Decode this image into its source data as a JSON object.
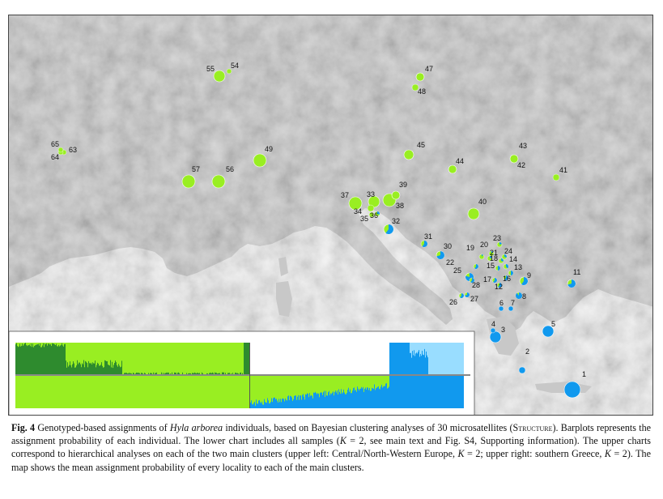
{
  "figure": {
    "caption": {
      "label": "Fig. 4",
      "text_1": "Genotyped-based assignments of",
      "species": "Hyla arborea",
      "text_2": "individuals, based on Bayesian clustering analyses of 30 microsatellites (",
      "software": "Structure",
      "text_3": "). Barplots represents the assignment probability of each individual. The lower chart includes all samples (",
      "k_all": "K",
      "text_4": "= 2, see main text and Fig. S4, Supporting information). The upper charts correspond to hierarchical analyses on each of the two main clusters (upper left: Central/North-Western Europe,",
      "k_cw": "K",
      "text_5": "= 2; upper right: southern Greece,",
      "k_gr": "K",
      "text_6": "= 2). The map shows the mean assignment probability of every locality to each of the main clusters."
    }
  },
  "chart_data": {
    "type": "map-pies-and-barplots",
    "colors": {
      "cluster_a": "#99ee22",
      "cluster_b": "#1199ee",
      "dark_green": "#2e8b2e",
      "light_blue": "#99ddff"
    },
    "localities": [
      {
        "id": "1",
        "blue": 1.0
      },
      {
        "id": "2",
        "blue": 1.0
      },
      {
        "id": "3",
        "blue": 1.0
      },
      {
        "id": "4",
        "blue": 1.0
      },
      {
        "id": "5",
        "blue": 1.0
      },
      {
        "id": "6",
        "blue": 1.0
      },
      {
        "id": "7",
        "blue": 1.0
      },
      {
        "id": "8",
        "blue": 0.9
      },
      {
        "id": "9",
        "blue": 0.6
      },
      {
        "id": "11",
        "blue": 0.7
      },
      {
        "id": "12",
        "blue": 0.6
      },
      {
        "id": "13",
        "blue": 0.5
      },
      {
        "id": "14",
        "blue": 0.4
      },
      {
        "id": "15",
        "blue": 0.5
      },
      {
        "id": "16",
        "blue": 0.6
      },
      {
        "id": "17",
        "blue": 0.6
      },
      {
        "id": "18",
        "blue": 0.3
      },
      {
        "id": "19",
        "blue": 0.1
      },
      {
        "id": "20",
        "blue": 0.1
      },
      {
        "id": "21",
        "blue": 0.2
      },
      {
        "id": "22",
        "blue": 0.6
      },
      {
        "id": "23",
        "blue": 0.2
      },
      {
        "id": "24",
        "blue": 0.3
      },
      {
        "id": "25",
        "blue": 0.8
      },
      {
        "id": "26",
        "blue": 0.6
      },
      {
        "id": "27",
        "blue": 0.7
      },
      {
        "id": "28",
        "blue": 0.6
      },
      {
        "id": "30",
        "blue": 0.7
      },
      {
        "id": "31",
        "blue": 0.6
      },
      {
        "id": "32",
        "blue": 0.6
      },
      {
        "id": "33",
        "blue": 0.0
      },
      {
        "id": "34",
        "blue": 0.0
      },
      {
        "id": "35",
        "blue": 0.0
      },
      {
        "id": "36",
        "blue": 0.3
      },
      {
        "id": "37",
        "blue": 0.0
      },
      {
        "id": "38",
        "blue": 0.0
      },
      {
        "id": "39",
        "blue": 0.0
      },
      {
        "id": "40",
        "blue": 0.0
      },
      {
        "id": "41",
        "blue": 0.0
      },
      {
        "id": "42",
        "blue": 0.0
      },
      {
        "id": "43",
        "blue": 0.0
      },
      {
        "id": "44",
        "blue": 0.0
      },
      {
        "id": "45",
        "blue": 0.0
      },
      {
        "id": "47",
        "blue": 0.0
      },
      {
        "id": "48",
        "blue": 0.0
      },
      {
        "id": "49",
        "blue": 0.0
      },
      {
        "id": "54",
        "blue": 0.0
      },
      {
        "id": "55",
        "blue": 0.0
      },
      {
        "id": "56",
        "blue": 0.0
      },
      {
        "id": "57",
        "blue": 0.0
      },
      {
        "id": "63",
        "blue": 0.0
      },
      {
        "id": "64",
        "blue": 0.0
      },
      {
        "id": "65",
        "blue": 0.0
      }
    ]
  }
}
